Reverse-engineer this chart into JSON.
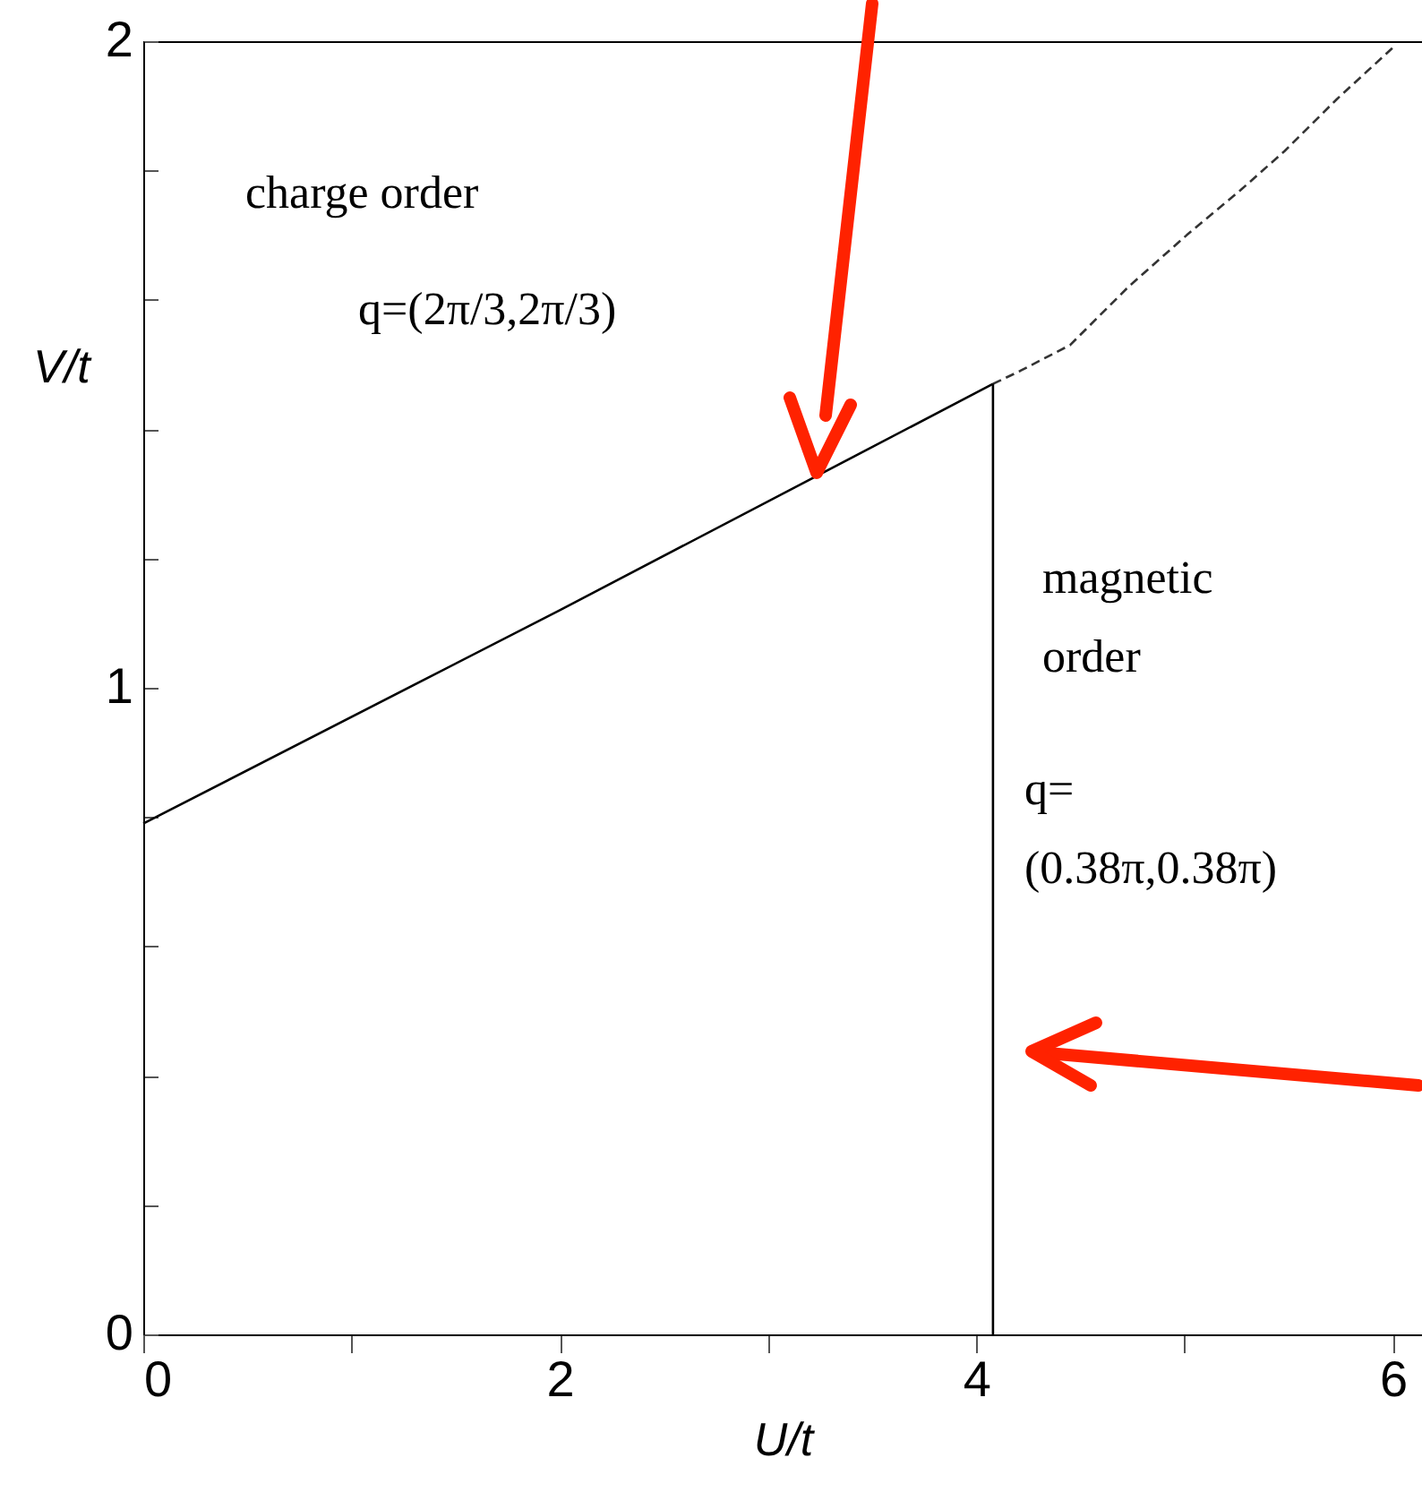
{
  "chart_data": {
    "type": "line",
    "xlabel": "U/t",
    "ylabel": "V/t",
    "xlim": [
      0,
      6.14
    ],
    "ylim": [
      0,
      2
    ],
    "xticks": [
      0,
      {
        "value": 1,
        "label": null
      },
      2,
      {
        "value": 3,
        "label": null
      },
      4,
      {
        "value": 5,
        "label": null
      },
      6
    ],
    "yticks": [
      0,
      {
        "value": 0.2,
        "label": null
      },
      {
        "value": 0.4,
        "label": null
      },
      {
        "value": 0.6,
        "label": null
      },
      {
        "value": 0.8,
        "label": null
      },
      1,
      {
        "value": 1.2,
        "label": null
      },
      {
        "value": 1.4,
        "label": null
      },
      {
        "value": 1.6,
        "label": null
      },
      {
        "value": 1.8,
        "label": null
      },
      2
    ],
    "grid": false,
    "marker": "none",
    "series": [
      {
        "color": "#000000",
        "line_style": "solid",
        "x": [
          0,
          2,
          4.08
        ],
        "values": [
          0.79,
          1.12,
          1.47
        ]
      },
      {
        "color": "#333333",
        "line_style": "dashed",
        "x": [
          4.08,
          4.21,
          4.45,
          4.73,
          5.01,
          5.27,
          5.48,
          5.73,
          6.0
        ],
        "values": [
          1.47,
          1.49,
          1.53,
          1.62,
          1.7,
          1.77,
          1.83,
          1.91,
          1.99
        ]
      },
      {
        "color": "#000000",
        "line_style": "solid",
        "x": [
          4.08,
          4.08
        ],
        "values": [
          0,
          1.47
        ]
      }
    ],
    "annotations": [
      "charge order",
      "q=(2π/3,2π/3)",
      "magnetic order",
      "q= (0.38π,0.38π)"
    ]
  }
}
